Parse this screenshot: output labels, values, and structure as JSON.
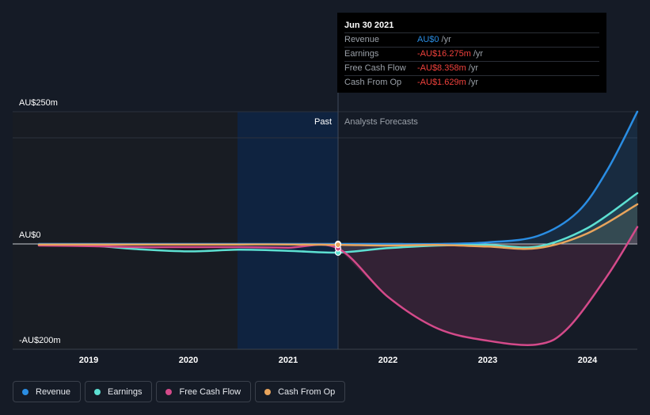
{
  "chart_data": {
    "type": "line",
    "y_axis": {
      "top_label": "AU$250m",
      "zero_label": "AU$0",
      "bottom_label": "-AU$200m",
      "ylim": [
        -200,
        250
      ]
    },
    "x_axis": {
      "ticks": [
        "2019",
        "2020",
        "2021",
        "2022",
        "2023",
        "2024"
      ],
      "xlim": [
        2018.5,
        2024.5
      ]
    },
    "zones": {
      "past_label": "Past",
      "forecast_label": "Analysts Forecasts",
      "divider_x": 2021.5,
      "highlight_start_x": 2020.5
    },
    "series": [
      {
        "name": "Revenue",
        "color": "#2a8de3",
        "points": [
          [
            2018.5,
            0
          ],
          [
            2019,
            0
          ],
          [
            2019.5,
            0
          ],
          [
            2020,
            0
          ],
          [
            2020.5,
            0
          ],
          [
            2021,
            0
          ],
          [
            2021.5,
            0
          ],
          [
            2022,
            0
          ],
          [
            2022.5,
            0
          ],
          [
            2023,
            3
          ],
          [
            2023.5,
            15
          ],
          [
            2023.9,
            60
          ],
          [
            2024.2,
            140
          ],
          [
            2024.5,
            250
          ]
        ]
      },
      {
        "name": "Earnings",
        "color": "#5de0d2",
        "points": [
          [
            2018.5,
            -2
          ],
          [
            2019,
            -3
          ],
          [
            2019.5,
            -10
          ],
          [
            2020,
            -14
          ],
          [
            2020.5,
            -11
          ],
          [
            2021,
            -13
          ],
          [
            2021.5,
            -16.3
          ],
          [
            2022,
            -8
          ],
          [
            2022.5,
            -3
          ],
          [
            2023,
            -2
          ],
          [
            2023.5,
            -5
          ],
          [
            2024,
            30
          ],
          [
            2024.5,
            96
          ]
        ]
      },
      {
        "name": "Free Cash Flow",
        "color": "#d44a8a",
        "points": [
          [
            2018.5,
            -3
          ],
          [
            2019,
            -4
          ],
          [
            2019.5,
            -6
          ],
          [
            2020,
            -6
          ],
          [
            2020.5,
            -6
          ],
          [
            2021,
            -7
          ],
          [
            2021.5,
            -8.4
          ],
          [
            2022,
            -100
          ],
          [
            2022.5,
            -160
          ],
          [
            2023,
            -183
          ],
          [
            2023.5,
            -190
          ],
          [
            2023.8,
            -160
          ],
          [
            2024.2,
            -60
          ],
          [
            2024.5,
            32
          ]
        ]
      },
      {
        "name": "Cash From Op",
        "color": "#e8a45c",
        "points": [
          [
            2018.5,
            -1
          ],
          [
            2019,
            -1
          ],
          [
            2019.5,
            -1
          ],
          [
            2020,
            -1
          ],
          [
            2020.5,
            -1
          ],
          [
            2021,
            -1
          ],
          [
            2021.5,
            -1.6
          ],
          [
            2022,
            -3
          ],
          [
            2022.5,
            -2
          ],
          [
            2023,
            -5
          ],
          [
            2023.5,
            -8
          ],
          [
            2024,
            20
          ],
          [
            2024.5,
            75
          ]
        ]
      }
    ],
    "hover_x": 2021.5
  },
  "tooltip": {
    "date": "Jun 30 2021",
    "rows": [
      {
        "key": "Revenue",
        "value": "AU$0",
        "unit": "/yr",
        "color": "#2a8de3"
      },
      {
        "key": "Earnings",
        "value": "-AU$16.275m",
        "unit": "/yr",
        "color": "#f0413c"
      },
      {
        "key": "Free Cash Flow",
        "value": "-AU$8.358m",
        "unit": "/yr",
        "color": "#f0413c"
      },
      {
        "key": "Cash From Op",
        "value": "-AU$1.629m",
        "unit": "/yr",
        "color": "#f0413c"
      }
    ]
  },
  "legend": [
    {
      "label": "Revenue",
      "color": "#2a8de3"
    },
    {
      "label": "Earnings",
      "color": "#5de0d2"
    },
    {
      "label": "Free Cash Flow",
      "color": "#d44a8a"
    },
    {
      "label": "Cash From Op",
      "color": "#e8a45c"
    }
  ]
}
